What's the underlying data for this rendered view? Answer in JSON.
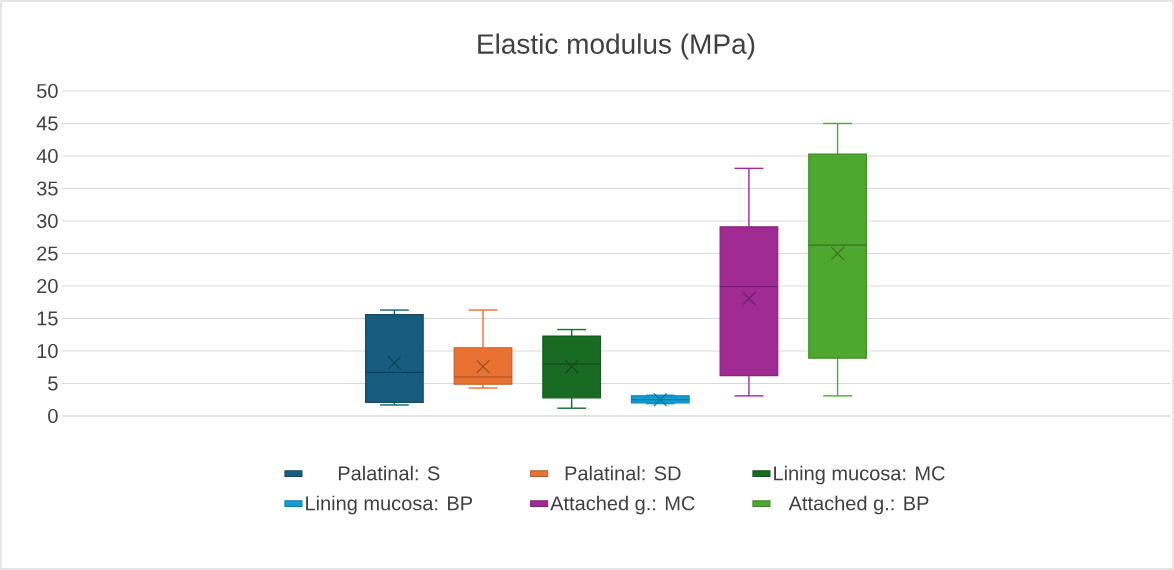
{
  "chart_data": {
    "type": "box",
    "title": "Elastic modulus (MPa)",
    "categories": [
      null
    ],
    "series": [
      {
        "name": "Palatinal: S",
        "color": "#175c7f",
        "boxes": [
          {
            "low": 1.7,
            "q1": 2.1,
            "median": 6.7,
            "q3": 15.6,
            "high": 16.3,
            "mean": 8.2
          }
        ]
      },
      {
        "name": "Palatinal: SD",
        "color": "#e97131",
        "boxes": [
          {
            "low": 4.3,
            "q1": 4.9,
            "median": 6.0,
            "q3": 10.5,
            "high": 16.3,
            "mean": 7.6
          }
        ]
      },
      {
        "name": "Lining mucosa: MC",
        "color": "#196b24",
        "boxes": [
          {
            "low": 1.2,
            "q1": 2.8,
            "median": 8.0,
            "q3": 12.3,
            "high": 13.3,
            "mean": 7.6
          }
        ]
      },
      {
        "name": "Lining mucosa: BP",
        "color": "#0f9ed5",
        "boxes": [
          {
            "low": 1.9,
            "q1": 2.0,
            "median": 2.5,
            "q3": 3.1,
            "high": 3.2,
            "mean": 2.5
          }
        ]
      },
      {
        "name": "Attached g.: MC",
        "color": "#a02b93",
        "boxes": [
          {
            "low": 3.1,
            "q1": 6.2,
            "median": 19.9,
            "q3": 29.1,
            "high": 38.1,
            "mean": 18.1
          }
        ]
      },
      {
        "name": "Attached g.: BP",
        "color": "#4ea72e",
        "boxes": [
          {
            "low": 3.1,
            "q1": 8.9,
            "median": 26.3,
            "q3": 40.3,
            "high": 45.0,
            "mean": 25.0
          }
        ]
      }
    ],
    "ylim": [
      0,
      50
    ],
    "yticks": [
      0,
      5,
      10,
      15,
      20,
      25,
      30,
      35,
      40,
      45,
      50
    ],
    "grid": "y",
    "legend": "bottom",
    "marker": "cross",
    "tick_labels": "y"
  }
}
